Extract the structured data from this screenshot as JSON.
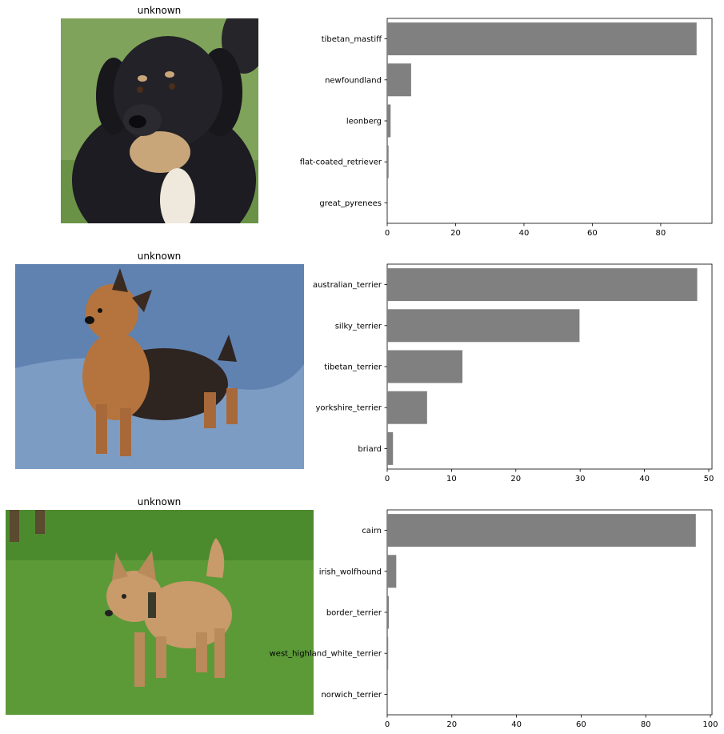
{
  "panels": [
    {
      "title": "unknown",
      "photo": {
        "description": "black and tan fluffy puppy on grass",
        "palette": {
          "bg": "#7fa35a",
          "grass_dark": "#5a7f3a",
          "fur": "#1c1c22",
          "tan": "#c9a57a",
          "chest": "#efe8dc"
        }
      },
      "chart_data": {
        "type": "bar",
        "orientation": "horizontal",
        "categories": [
          "tibetan_mastiff",
          "newfoundland",
          "leonberg",
          "flat-coated_retriever",
          "great_pyrenees"
        ],
        "values": [
          90.5,
          7.0,
          1.0,
          0.4,
          0.1
        ],
        "xlim": [
          0,
          95
        ],
        "xticks": [
          0,
          20,
          40,
          60,
          80
        ],
        "bar_color": "#808080",
        "grid": false,
        "title": "",
        "xlabel": "",
        "ylabel": ""
      }
    },
    {
      "title": "unknown",
      "photo": {
        "description": "small terrier standing on blue cloth",
        "palette": {
          "bg": "#5f82b0",
          "bg_light": "#7d9cc4",
          "fur": "#b5743e",
          "fur_dark": "#2e2420"
        }
      },
      "chart_data": {
        "type": "bar",
        "orientation": "horizontal",
        "categories": [
          "australian_terrier",
          "silky_terrier",
          "tibetan_terrier",
          "yorkshire_terrier",
          "briard"
        ],
        "values": [
          48.2,
          29.9,
          11.7,
          6.2,
          0.9
        ],
        "xlim": [
          0,
          50.5
        ],
        "xticks": [
          0,
          10,
          20,
          30,
          40,
          50
        ],
        "bar_color": "#808080",
        "grid": false,
        "title": "",
        "xlabel": "",
        "ylabel": ""
      }
    },
    {
      "title": "unknown",
      "photo": {
        "description": "tan cairn terrier walking on grass",
        "palette": {
          "bg": "#4c8a2e",
          "bg_light": "#6aa844",
          "fur": "#c99a6a",
          "fur_dark": "#8a6240"
        }
      },
      "chart_data": {
        "type": "bar",
        "orientation": "horizontal",
        "categories": [
          "cairn",
          "irish_wolfhound",
          "border_terrier",
          "west_highland_white_terrier",
          "norwich_terrier"
        ],
        "values": [
          95.5,
          2.8,
          0.5,
          0.3,
          0.2
        ],
        "xlim": [
          0,
          100.5
        ],
        "xticks": [
          0,
          20,
          40,
          60,
          80,
          100
        ],
        "bar_color": "#808080",
        "grid": false,
        "title": "",
        "xlabel": "",
        "ylabel": ""
      }
    }
  ]
}
